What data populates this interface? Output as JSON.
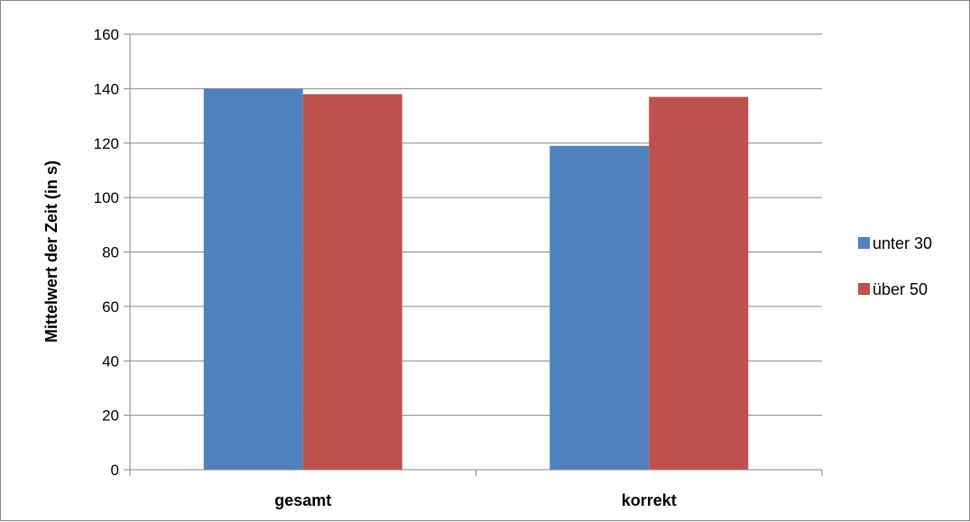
{
  "chart_data": {
    "type": "bar",
    "categories": [
      "gesamt",
      "korrekt"
    ],
    "series": [
      {
        "name": "unter 30",
        "values": [
          140,
          119
        ],
        "color": "#4F81BD"
      },
      {
        "name": "über 50",
        "values": [
          138,
          137
        ],
        "color": "#C0504D"
      }
    ],
    "ylabel": "Mittelwert der Zeit (in s)",
    "xlabel": "",
    "ylim": [
      0,
      160
    ],
    "yticks": [
      0,
      20,
      40,
      60,
      80,
      100,
      120,
      140,
      160
    ],
    "grid": true,
    "legend_position": "right"
  }
}
